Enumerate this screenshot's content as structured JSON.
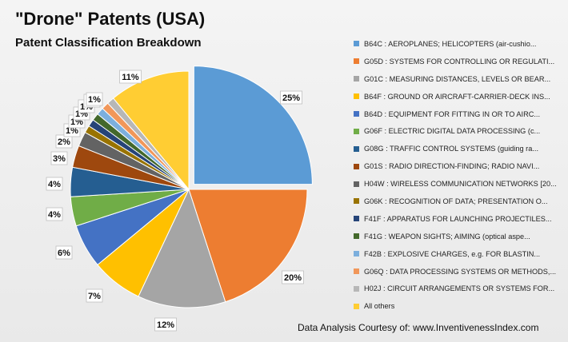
{
  "chart_data": {
    "type": "pie",
    "title": "\"Drone\" Patents (USA)",
    "subtitle": "Patent Classification Breakdown",
    "legend_position": "right",
    "slices": [
      {
        "name": "B64C : AEROPLANES; HELICOPTERS (air-cushio...",
        "value": 25,
        "label": "25%",
        "color": "#5b9bd5"
      },
      {
        "name": "G05D : SYSTEMS FOR CONTROLLING OR REGULATI...",
        "value": 20,
        "label": "20%",
        "color": "#ed7d31"
      },
      {
        "name": "G01C : MEASURING DISTANCES, LEVELS OR BEAR...",
        "value": 12,
        "label": "12%",
        "color": "#a5a5a5"
      },
      {
        "name": "B64F : GROUND OR AIRCRAFT-CARRIER-DECK INS...",
        "value": 7,
        "label": "7%",
        "color": "#ffc000"
      },
      {
        "name": "B64D : EQUIPMENT FOR FITTING IN OR TO AIRC...",
        "value": 6,
        "label": "6%",
        "color": "#4472c4"
      },
      {
        "name": "G06F : ELECTRIC DIGITAL DATA PROCESSING (c...",
        "value": 4,
        "label": "4%",
        "color": "#70ad47"
      },
      {
        "name": "G08G : TRAFFIC CONTROL SYSTEMS (guiding ra...",
        "value": 4,
        "label": "4%",
        "color": "#255e91"
      },
      {
        "name": "G01S : RADIO DIRECTION-FINDING; RADIO NAVI...",
        "value": 3,
        "label": "3%",
        "color": "#9e480e"
      },
      {
        "name": "H04W : WIRELESS COMMUNICATION NETWORKS [20...",
        "value": 2,
        "label": "2%",
        "color": "#636363"
      },
      {
        "name": "G06K : RECOGNITION OF DATA; PRESENTATION O...",
        "value": 1,
        "label": "1%",
        "color": "#997300"
      },
      {
        "name": "F41F : APPARATUS FOR LAUNCHING PROJECTILES...",
        "value": 1,
        "label": "1%",
        "color": "#264478"
      },
      {
        "name": "F41G : WEAPON SIGHTS; AIMING (optical aspe...",
        "value": 1,
        "label": "1%",
        "color": "#43682b"
      },
      {
        "name": "F42B : EXPLOSIVE CHARGES, e.g. FOR BLASTIN...",
        "value": 1,
        "label": "1%",
        "color": "#7cafdd"
      },
      {
        "name": "G06Q : DATA PROCESSING SYSTEMS OR METHODS,...",
        "value": 1,
        "label": "1%",
        "color": "#f1975a"
      },
      {
        "name": "H02J : CIRCUIT ARRANGEMENTS OR SYSTEMS FOR...",
        "value": 1,
        "label": "1%",
        "color": "#b7b7b7"
      },
      {
        "name": "All others",
        "value": 11,
        "label": "11%",
        "color": "#ffcd33"
      }
    ]
  },
  "footer": "Data Analysis Courtesy of: www.InventivenessIndex.com"
}
